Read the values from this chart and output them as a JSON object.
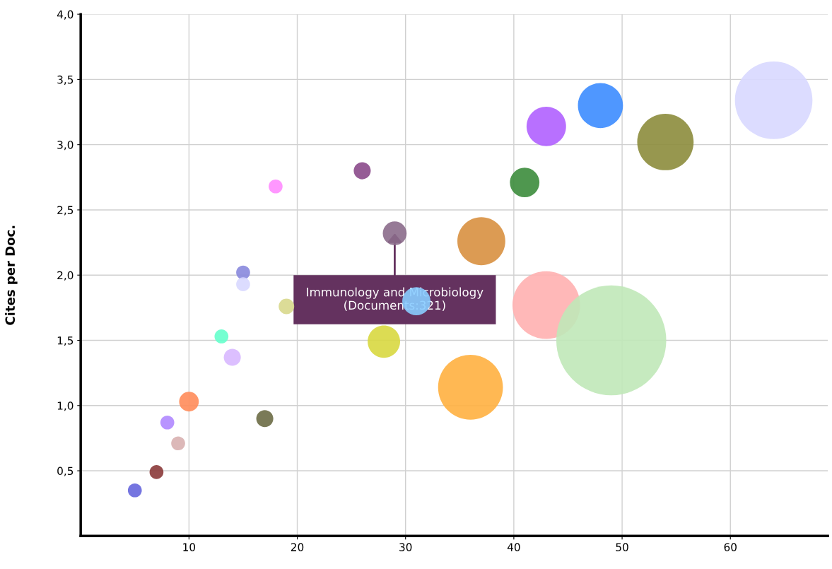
{
  "chart_data": {
    "type": "bubble",
    "ylabel": "Cites per Doc.",
    "x": [
      5,
      7,
      8,
      9,
      10,
      13,
      14,
      15,
      15,
      17,
      18,
      19,
      26,
      29,
      28,
      31,
      37,
      36,
      41,
      43,
      43,
      48,
      54,
      49,
      64
    ],
    "values": [
      0.35,
      0.49,
      0.87,
      0.71,
      1.03,
      1.53,
      1.37,
      2.02,
      1.93,
      0.9,
      2.68,
      1.76,
      2.8,
      2.32,
      1.49,
      1.8,
      2.26,
      1.14,
      2.71,
      3.14,
      1.77,
      3.3,
      3.02,
      1.5,
      3.34
    ],
    "sizes": [
      0.016,
      0.016,
      0.016,
      0.016,
      0.032,
      0.016,
      0.024,
      0.016,
      0.016,
      0.024,
      0.016,
      0.02,
      0.024,
      0.047,
      0.087,
      0.066,
      0.19,
      0.348,
      0.072,
      0.129,
      0.379,
      0.168,
      0.263,
      1,
      0.497
    ],
    "colors": [
      "#6666dd",
      "#8b3a3a",
      "#b088ff",
      "#d8b0b0",
      "#ff8c5a",
      "#66ffcc",
      "#d8b8ff",
      "#8888dd",
      "#d8d8ff",
      "#6b6b45",
      "#ff8cff",
      "#d8d88c",
      "#8b4a8b",
      "#8b6b8b",
      "#d8d840",
      "#88ccff",
      "#d89040",
      "#ffb040",
      "#3c8c3c",
      "#b060ff",
      "#ffb0b0",
      "#3c8cff",
      "#8c8c3c",
      "#c0e8b8",
      "#d8d8ff"
    ],
    "xlim": [
      0,
      69
    ],
    "xticks": [
      10,
      20,
      30,
      40,
      50,
      60
    ],
    "ylim": [
      0,
      4
    ],
    "yticks": [
      {
        "value": 0.5,
        "label": "0,5"
      },
      {
        "value": 1.0,
        "label": "1,0"
      },
      {
        "value": 1.5,
        "label": "1,5"
      },
      {
        "value": 2.0,
        "label": "2,0"
      },
      {
        "value": 2.5,
        "label": "2,5"
      },
      {
        "value": 3.0,
        "label": "3,0"
      },
      {
        "value": 3.5,
        "label": "3,5"
      },
      {
        "value": 4.0,
        "label": "4,0"
      }
    ],
    "grid": true,
    "annotations": [
      {
        "text": "Immunology and Microbiology\n(Documents:321)",
        "x": 29,
        "y": 2.32
      }
    ]
  }
}
